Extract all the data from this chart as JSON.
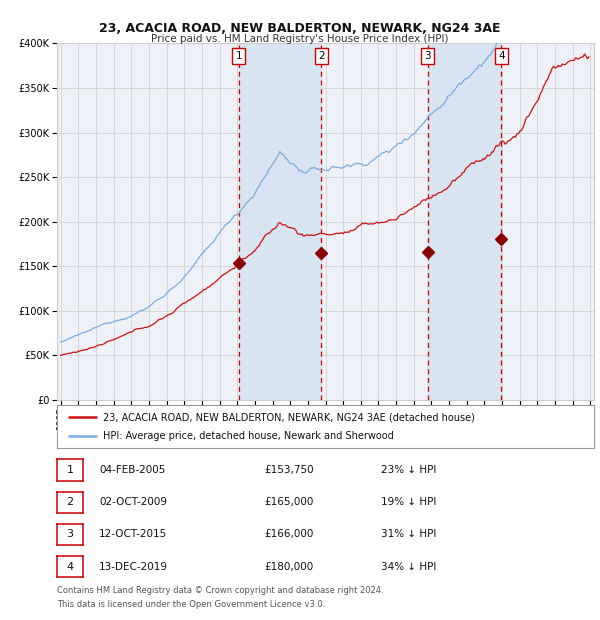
{
  "title": "23, ACACIA ROAD, NEW BALDERTON, NEWARK, NG24 3AE",
  "subtitle": "Price paid vs. HM Land Registry's House Price Index (HPI)",
  "legend_line1": "23, ACACIA ROAD, NEW BALDERTON, NEWARK, NG24 3AE (detached house)",
  "legend_line2": "HPI: Average price, detached house, Newark and Sherwood",
  "footnote1": "Contains HM Land Registry data © Crown copyright and database right 2024.",
  "footnote2": "This data is licensed under the Open Government Licence v3.0.",
  "table_rows": [
    {
      "num": "1",
      "date": "04-FEB-2005",
      "price": "£153,750",
      "pct": "23% ↓ HPI"
    },
    {
      "num": "2",
      "date": "02-OCT-2009",
      "price": "£165,000",
      "pct": "19% ↓ HPI"
    },
    {
      "num": "3",
      "date": "12-OCT-2015",
      "price": "£166,000",
      "pct": "31% ↓ HPI"
    },
    {
      "num": "4",
      "date": "13-DEC-2019",
      "price": "£180,000",
      "pct": "34% ↓ HPI"
    }
  ],
  "sale_dates_decimal": [
    2005.09,
    2009.75,
    2015.78,
    2019.95
  ],
  "sale_prices": [
    153750,
    165000,
    166000,
    180000
  ],
  "hpi_color": "#7aaadd",
  "price_color": "#cc1111",
  "sale_marker_color": "#880000",
  "background_color": "#ffffff",
  "plot_bg_color": "#eef2f8",
  "grid_color": "#cccccc",
  "vline_color": "#cc0000",
  "shade_color": "#d8e4f2",
  "ylim": [
    0,
    400000
  ],
  "yticks": [
    0,
    50000,
    100000,
    150000,
    200000,
    250000,
    300000,
    350000,
    400000
  ],
  "start_year": 1995,
  "end_year": 2025
}
